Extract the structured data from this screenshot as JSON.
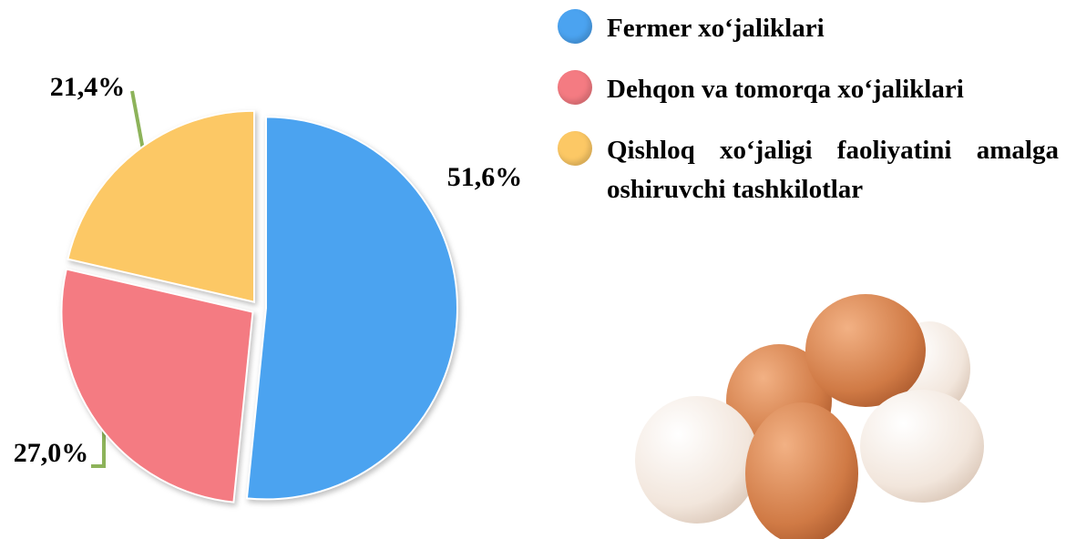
{
  "chart_data": {
    "type": "pie",
    "categories": [
      "Fermer xo‘jaliklari",
      "Dehqon va tomorqa xo‘jaliklari",
      "Qishloq xo‘jaligi faoliyatini amalga oshiruvchi tashkilotlar"
    ],
    "values": [
      51.6,
      27.0,
      21.4
    ],
    "value_labels": [
      "51,6%",
      "27,0%",
      "21,4%"
    ],
    "colors": [
      "#4ba3f0",
      "#f47b82",
      "#fcc865"
    ]
  }
}
